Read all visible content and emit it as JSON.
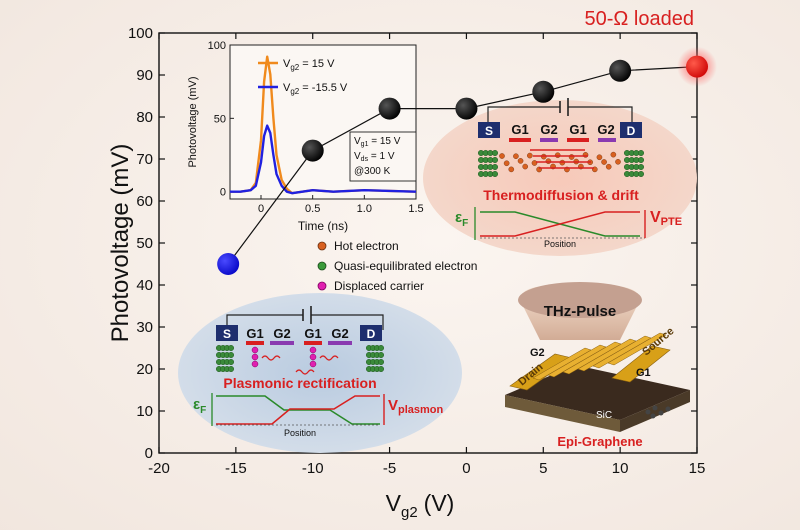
{
  "chart_data": {
    "type": "scatter",
    "xlabel_main": "V",
    "xlabel_sub": "g2",
    "xlabel_unit": "(V)",
    "ylabel": "Photovoltage (mV)",
    "annotation": "50-Ω loaded",
    "xlim": [
      -20,
      15
    ],
    "ylim": [
      0,
      100
    ],
    "x_ticks": [
      -20,
      -15,
      -10,
      -5,
      0,
      5,
      10,
      15
    ],
    "y_ticks": [
      0,
      10,
      20,
      30,
      40,
      50,
      60,
      70,
      80,
      90,
      100
    ],
    "series": [
      {
        "x": [
          -15.5,
          -10,
          -5,
          0,
          5,
          10,
          15
        ],
        "y": [
          45,
          72,
          82,
          82,
          86,
          91,
          92
        ],
        "marker_colors": [
          "#1010e0",
          "#000000",
          "#000000",
          "#000000",
          "#000000",
          "#000000",
          "#e81010"
        ]
      }
    ],
    "inset": {
      "type": "line",
      "xlabel": "Time (ns)",
      "ylabel": "Photovoltage (mV)",
      "xlim": [
        -0.3,
        1.5
      ],
      "ylim": [
        -5,
        100
      ],
      "x_ticks": [
        "0",
        "0.5",
        "1.0",
        "1.5"
      ],
      "y_ticks": [
        "0",
        "50",
        "100"
      ],
      "series": [
        {
          "name_main": "V",
          "name_sub": "g2",
          "name_rest": " = 15 V",
          "color": "#f08a1c",
          "x": [
            -0.3,
            -0.2,
            -0.1,
            -0.05,
            0.0,
            0.03,
            0.06,
            0.09,
            0.12,
            0.15,
            0.2,
            0.25,
            0.3,
            0.4,
            0.5,
            0.7,
            1.0,
            1.5
          ],
          "y": [
            0,
            0,
            1,
            6,
            35,
            75,
            92,
            80,
            50,
            25,
            8,
            2,
            -1,
            0,
            1,
            0,
            1,
            0
          ]
        },
        {
          "name_main": "V",
          "name_sub": "g2",
          "name_rest": " = -15.5 V",
          "color": "#2020e0",
          "x": [
            -0.3,
            -0.2,
            -0.1,
            -0.05,
            0.0,
            0.03,
            0.06,
            0.09,
            0.12,
            0.15,
            0.2,
            0.25,
            0.3,
            0.4,
            0.5,
            0.7,
            1.0,
            1.5
          ],
          "y": [
            0,
            0,
            1,
            4,
            20,
            38,
            45,
            40,
            25,
            12,
            4,
            0,
            -1,
            0,
            1,
            0,
            1,
            0
          ]
        }
      ],
      "conditions": [
        "V",
        "g1",
        " = 15 V",
        "V",
        "ds",
        " = 1 V",
        "@300 K"
      ]
    }
  },
  "legend": {
    "hot_electron": "Hot electron",
    "quasi": "Quasi-equilibrated electron",
    "displaced": "Displaced carrier"
  },
  "pte_panel": {
    "s": "S",
    "g1a": "G1",
    "g2a": "G2",
    "g1b": "G1",
    "g2b": "G2",
    "d": "D",
    "title": "Thermodiffusion & drift",
    "ef_main": "ε",
    "ef_sub": "F",
    "v_main": "V",
    "v_sub": "PTE",
    "position": "Position"
  },
  "plasmon_panel": {
    "s": "S",
    "g1a": "G1",
    "g2a": "G2",
    "g1b": "G1",
    "g2b": "G2",
    "d": "D",
    "title": "Plasmonic rectification",
    "ef_main": "ε",
    "ef_sub": "F",
    "v_main": "V",
    "v_sub": "plasmon",
    "position": "Position"
  },
  "device": {
    "title": "THz-Pulse",
    "g2": "G2",
    "g1": "G1",
    "source": "Source",
    "drain": "Drain",
    "sic": "SiC",
    "graphene": "Epi-Graphene"
  },
  "colors": {
    "hot": "#d86020",
    "quasi": "#2e8a2e",
    "displaced": "#e020b0",
    "red": "#d82020",
    "green": "#2a8a2a"
  }
}
